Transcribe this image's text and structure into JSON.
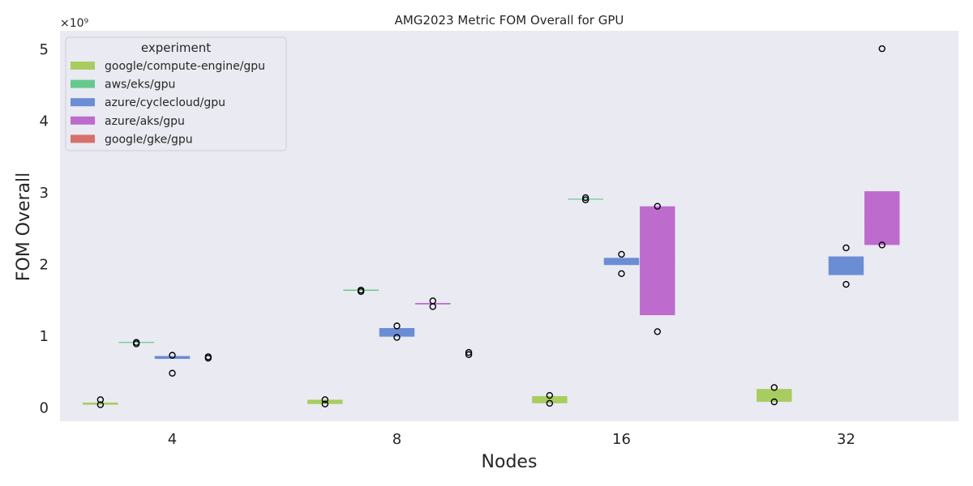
{
  "chart_data": {
    "type": "box",
    "title": "AMG2023 Metric FOM Overall for GPU",
    "xlabel": "Nodes",
    "ylabel": "FOM Overall",
    "y_multiplier_label": "×10⁹",
    "categories": [
      "4",
      "8",
      "16",
      "32"
    ],
    "ylim": [
      -0.2,
      5.25
    ],
    "yticks": [
      0,
      1,
      2,
      3,
      4,
      5
    ],
    "grid": false,
    "legend_title": "experiment",
    "legend_position": "top-left",
    "series": [
      {
        "name": "google/compute-engine/gpu",
        "color": "#a9cc60",
        "boxes": [
          {
            "category": "4",
            "q1": 0.03,
            "median": 0.05,
            "q3": 0.06,
            "fliers": [
              0.1,
              0.03
            ]
          },
          {
            "category": "8",
            "q1": 0.04,
            "median": 0.07,
            "q3": 0.1,
            "fliers": [
              0.1,
              0.04
            ]
          },
          {
            "category": "16",
            "q1": 0.05,
            "median": 0.1,
            "q3": 0.15,
            "fliers": [
              0.16,
              0.05
            ]
          },
          {
            "category": "32",
            "q1": 0.07,
            "median": 0.15,
            "q3": 0.25,
            "fliers": [
              0.27,
              0.07
            ]
          }
        ]
      },
      {
        "name": "aws/eks/gpu",
        "color": "#64c98c",
        "boxes": [
          {
            "category": "4",
            "q1": 0.9,
            "median": 0.9,
            "q3": 0.905,
            "fliers": [
              0.9,
              0.88
            ]
          },
          {
            "category": "8",
            "q1": 1.62,
            "median": 1.63,
            "q3": 1.635,
            "fliers": [
              1.63,
              1.61
            ]
          },
          {
            "category": "16",
            "q1": 2.895,
            "median": 2.9,
            "q3": 2.905,
            "fliers": [
              2.92,
              2.89
            ]
          }
        ]
      },
      {
        "name": "azure/cyclecloud/gpu",
        "color": "#6b8dd4",
        "boxes": [
          {
            "category": "4",
            "q1": 0.67,
            "median": 0.69,
            "q3": 0.71,
            "fliers": [
              0.72,
              0.47
            ]
          },
          {
            "category": "8",
            "q1": 0.98,
            "median": 1.04,
            "q3": 1.1,
            "fliers": [
              1.13,
              0.97
            ]
          },
          {
            "category": "16",
            "q1": 1.98,
            "median": 2.03,
            "q3": 2.08,
            "fliers": [
              2.13,
              1.86
            ]
          },
          {
            "category": "32",
            "q1": 1.84,
            "median": 1.97,
            "q3": 2.1,
            "fliers": [
              2.22,
              1.71
            ]
          }
        ]
      },
      {
        "name": "azure/aks/gpu",
        "color": "#bd6bcc",
        "boxes": [
          {
            "category": "4",
            "q1": 0.0,
            "median": 0.0,
            "q3": 0.0,
            "fliers": [
              0.7,
              0.68
            ],
            "box_hidden": true
          },
          {
            "category": "8",
            "q1": 1.43,
            "median": 1.44,
            "q3": 1.45,
            "fliers": [
              1.48,
              1.4
            ]
          },
          {
            "category": "16",
            "q1": 1.28,
            "median": 2.0,
            "q3": 2.8,
            "fliers": [
              2.8,
              1.05
            ]
          },
          {
            "category": "32",
            "q1": 2.26,
            "median": 2.6,
            "q3": 3.01,
            "fliers": [
              5.0,
              2.26
            ]
          }
        ]
      },
      {
        "name": "google/gke/gpu",
        "color": "#d7706a",
        "boxes": [
          {
            "category": "8",
            "q1": 0.0,
            "median": 0.0,
            "q3": 0.0,
            "fliers": [
              0.76,
              0.73
            ],
            "box_hidden": true
          }
        ]
      }
    ]
  }
}
